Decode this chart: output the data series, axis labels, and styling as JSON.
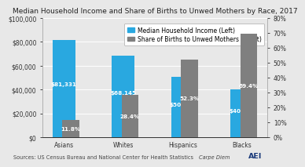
{
  "title": "Median Household Income and Share of Births to Unwed Mothers by Race, 2017",
  "categories": [
    "Asians",
    "Whites",
    "Hispanics",
    "Blacks"
  ],
  "income": [
    81331,
    68145,
    50486,
    40258
  ],
  "income_labels": [
    "$81,331",
    "$68,145",
    "$50,486",
    "$40,258"
  ],
  "pct": [
    0.118,
    0.284,
    0.523,
    0.694
  ],
  "pct_labels": [
    "11.8%",
    "28.4%",
    "52.3%",
    "69.4%"
  ],
  "income_color": "#29A8E0",
  "pct_color": "#7F7F7F",
  "ylim_left": [
    0,
    100000
  ],
  "ylim_right": [
    0,
    0.8
  ],
  "yticks_left": [
    0,
    20000,
    40000,
    60000,
    80000,
    100000
  ],
  "ytick_labels_left": [
    "$0",
    "$20,000",
    "$40,000",
    "$60,000",
    "$80,000",
    "$100,000"
  ],
  "yticks_right": [
    0.0,
    0.1,
    0.2,
    0.3,
    0.4,
    0.5,
    0.6,
    0.7,
    0.8
  ],
  "ytick_labels_right": [
    "0%",
    "10%",
    "20%",
    "30%",
    "40%",
    "50%",
    "60%",
    "70%",
    "80%"
  ],
  "legend_income": "Median Household Income (Left)",
  "legend_pct": "Share of Births to Unwed Mothers (Right)",
  "source_text": "Sources: US Census Bureau and National Center for Health Statistics",
  "carpe_text": "Carpe Diem",
  "aei_text": "AEI",
  "background_color": "#E8E8E8",
  "title_fontsize": 6.5,
  "label_fontsize": 5.2,
  "tick_fontsize": 5.5,
  "legend_fontsize": 5.5,
  "source_fontsize": 4.8
}
